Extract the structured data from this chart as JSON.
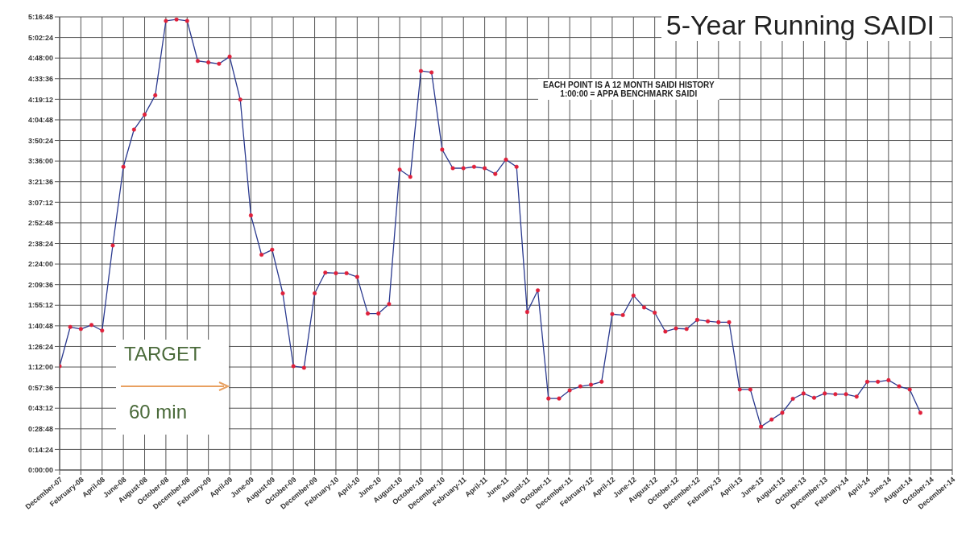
{
  "chart_data": {
    "type": "line",
    "title": "5-Year Running SAIDI",
    "categories": [
      "December-07",
      null,
      "February-08",
      null,
      "April-08",
      null,
      "June-08",
      null,
      "August-08",
      null,
      "October-08",
      null,
      "December-08",
      null,
      "February-09",
      null,
      "April-09",
      null,
      "June-09",
      null,
      "August-09",
      null,
      "October-09",
      null,
      "December-09",
      null,
      "February-10",
      null,
      "April-10",
      null,
      "June-10",
      null,
      "August-10",
      null,
      "October-10",
      null,
      "December-10",
      null,
      "February-11",
      null,
      "April-11",
      null,
      "June-11",
      null,
      "August-11",
      null,
      "October-11",
      null,
      "December-11",
      null,
      "February-12",
      null,
      "April-12",
      null,
      "June-12",
      null,
      "August-12",
      null,
      "October-12",
      null,
      "December-12",
      null,
      "February-13",
      null,
      "April-13",
      null,
      "June-13",
      null,
      "August-13",
      null,
      "October-13",
      null,
      "December-13",
      null,
      "February-14",
      null,
      "April-14",
      null,
      "June-14",
      null,
      "August-14",
      null,
      "October-14",
      null,
      "December-14"
    ],
    "series": [
      {
        "color": "#2b3a8f",
        "values": [
          72.6,
          100,
          98.6,
          101.4,
          97.5,
          157,
          212,
          238,
          248.5,
          262,
          314,
          315,
          314,
          286,
          285,
          284,
          289,
          259,
          178,
          150.5,
          154,
          123.5,
          72.6,
          71.5,
          123.5,
          138,
          137.6,
          137.6,
          135,
          109.4,
          109.4,
          116,
          210,
          205,
          279,
          278,
          224,
          211,
          211,
          212,
          211,
          207,
          217,
          212,
          110.5,
          125.6,
          50,
          50,
          55.7,
          58.5,
          59.6,
          61.7,
          109,
          108.3,
          122,
          113.7,
          110,
          96.8,
          99,
          98.6,
          105,
          104,
          103.3,
          103.3,
          56.3,
          56.3,
          30.3,
          35.3,
          40,
          49.8,
          53.5,
          50.5,
          53.5,
          53,
          53,
          51.3,
          61.7,
          61.7,
          62.8,
          58.5,
          56.3,
          40,
          null,
          null,
          null
        ]
      }
    ],
    "ylim": [
      0,
      316.8
    ],
    "yticks": [
      {
        "value": 0,
        "label": "0:00:00"
      },
      {
        "value": 14.4,
        "label": "0:14:24"
      },
      {
        "value": 28.8,
        "label": "0:28:48"
      },
      {
        "value": 43.2,
        "label": "0:43:12"
      },
      {
        "value": 57.6,
        "label": "0:57:36"
      },
      {
        "value": 72,
        "label": "1:12:00"
      },
      {
        "value": 86.4,
        "label": "1:26:24"
      },
      {
        "value": 100.8,
        "label": "1:40:48"
      },
      {
        "value": 115.2,
        "label": "1:55:12"
      },
      {
        "value": 129.6,
        "label": "2:09:36"
      },
      {
        "value": 144,
        "label": "2:24:00"
      },
      {
        "value": 158.4,
        "label": "2:38:24"
      },
      {
        "value": 172.8,
        "label": "2:52:48"
      },
      {
        "value": 187.2,
        "label": "3:07:12"
      },
      {
        "value": 201.6,
        "label": "3:21:36"
      },
      {
        "value": 216,
        "label": "3:36:00"
      },
      {
        "value": 230.4,
        "label": "3:50:24"
      },
      {
        "value": 244.8,
        "label": "4:04:48"
      },
      {
        "value": 259.2,
        "label": "4:19:12"
      },
      {
        "value": 273.6,
        "label": "4:33:36"
      },
      {
        "value": 288,
        "label": "4:48:00"
      },
      {
        "value": 302.4,
        "label": "5:02:24"
      },
      {
        "value": 316.8,
        "label": "5:16:48"
      }
    ],
    "grid": true,
    "marker": "circle",
    "legend": false,
    "annotations": [
      "EACH POINT IS A 12 MONTH SAIDI HISTORY",
      "1:00:00 = APPA  BENCHMARK  SAIDI",
      "TARGET",
      "60 min"
    ]
  }
}
